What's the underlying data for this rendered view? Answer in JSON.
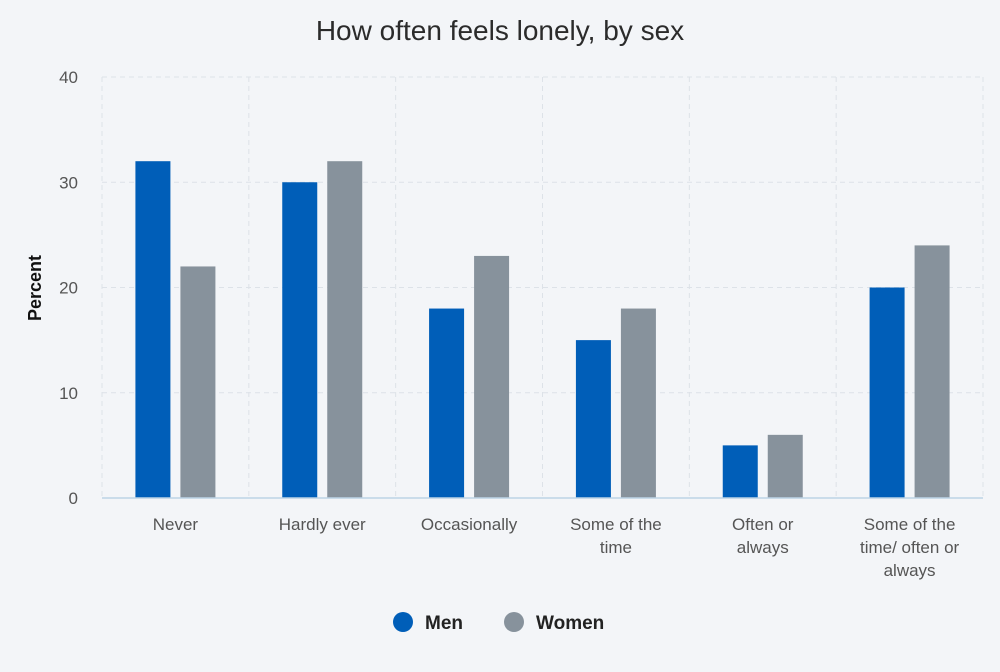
{
  "chart_data": {
    "type": "bar",
    "title": "How often feels lonely, by sex",
    "xlabel": "",
    "ylabel": "Percent",
    "ylim": [
      0,
      40
    ],
    "yticks": [
      0,
      10,
      20,
      30,
      40
    ],
    "grid": true,
    "legend_position": "bottom-center",
    "categories": [
      "Never",
      "Hardly ever",
      "Occasionally",
      "Some of the time",
      "Often or always",
      "Some of the time/ often or always"
    ],
    "category_lines": [
      [
        "Never"
      ],
      [
        "Hardly ever"
      ],
      [
        "Occasionally"
      ],
      [
        "Some of the",
        "time"
      ],
      [
        "Often or",
        "always"
      ],
      [
        "Some of the",
        "time/ often or",
        "always"
      ]
    ],
    "series": [
      {
        "name": "Men",
        "color": "#005eb8",
        "values": [
          32,
          30,
          18,
          15,
          5,
          20
        ]
      },
      {
        "name": "Women",
        "color": "#87929c",
        "values": [
          22,
          32,
          23,
          18,
          6,
          24
        ]
      }
    ]
  }
}
